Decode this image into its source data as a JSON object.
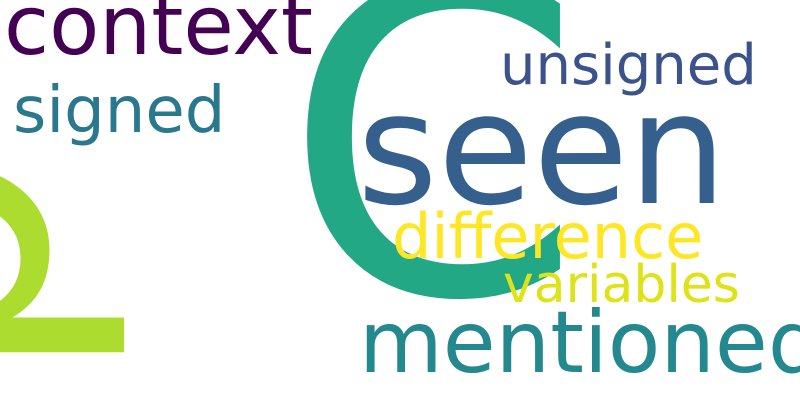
{
  "words": [
    {
      "id": "p",
      "text": "p",
      "color": "#addc30",
      "rotated": true
    },
    {
      "id": "C",
      "text": "C",
      "color": "#22a884",
      "rotated": false
    },
    {
      "id": "seen",
      "text": "seen",
      "color": "#355f8d",
      "rotated": false
    },
    {
      "id": "context",
      "text": "context",
      "color": "#440154",
      "rotated": false
    },
    {
      "id": "unsigned",
      "text": "unsigned",
      "color": "#3b528b",
      "rotated": false
    },
    {
      "id": "signed",
      "text": "signed",
      "color": "#2a788e",
      "rotated": false
    },
    {
      "id": "difference",
      "text": "difference",
      "color": "#fde725",
      "rotated": false
    },
    {
      "id": "variables",
      "text": "variables",
      "color": "#dde318",
      "rotated": false
    },
    {
      "id": "mentioned",
      "text": "mentioned",
      "color": "#23898e",
      "rotated": false
    }
  ]
}
